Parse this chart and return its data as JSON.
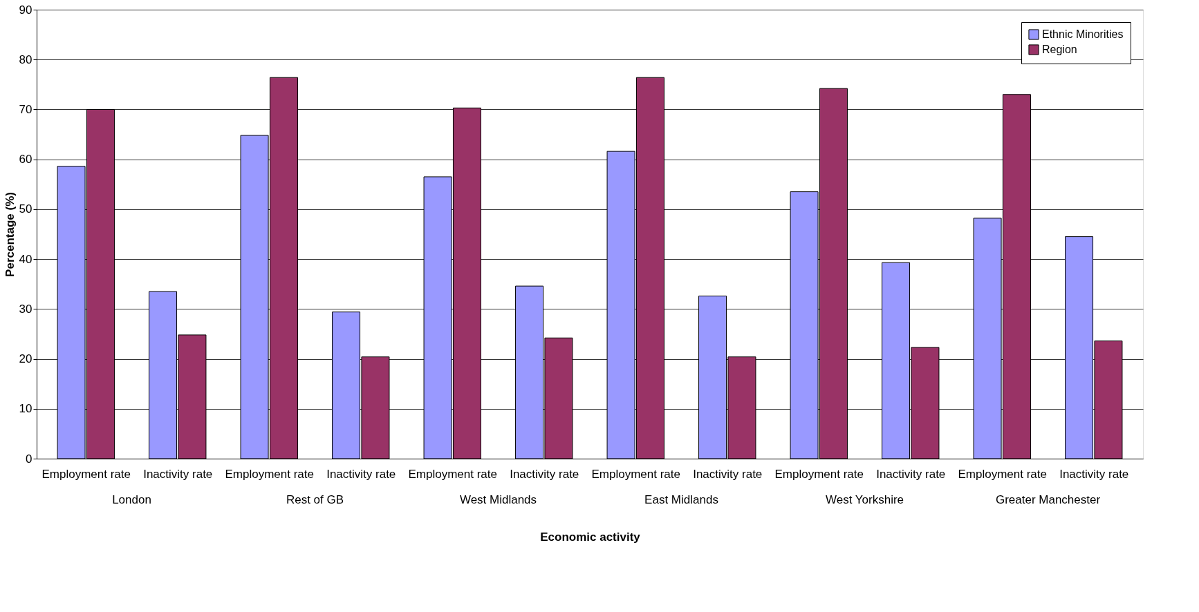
{
  "chart_data": {
    "type": "bar",
    "xlabel": "Economic activity",
    "ylabel": "Percentage (%)",
    "categories": [
      "Employment rate",
      "Inactivity rate",
      "Employment rate",
      "Inactivity rate",
      "Employment rate",
      "Inactivity rate",
      "Employment rate",
      "Inactivity rate",
      "Employment rate",
      "Inactivity rate",
      "Employment rate",
      "Inactivity rate"
    ],
    "annotations": [
      "London",
      "Rest of GB",
      "West Midlands",
      "East Midlands",
      "West Yorkshire",
      "Greater Manchester"
    ],
    "series": [
      {
        "name": "Ethnic Minorities",
        "color": "#9999ff",
        "values": [
          58.6,
          33.5,
          64.8,
          29.4,
          56.5,
          34.6,
          61.6,
          32.6,
          53.5,
          39.3,
          48.2,
          44.5
        ]
      },
      {
        "name": "Region",
        "color": "#993366",
        "values": [
          70.0,
          24.8,
          76.4,
          20.4,
          70.3,
          24.2,
          76.4,
          20.4,
          74.2,
          22.3,
          73.0,
          23.6
        ]
      }
    ],
    "ylim": [
      0,
      90
    ],
    "yticks": [
      0,
      10,
      20,
      30,
      40,
      50,
      60,
      70,
      80,
      90
    ],
    "grid": "y",
    "legend": "top right"
  }
}
